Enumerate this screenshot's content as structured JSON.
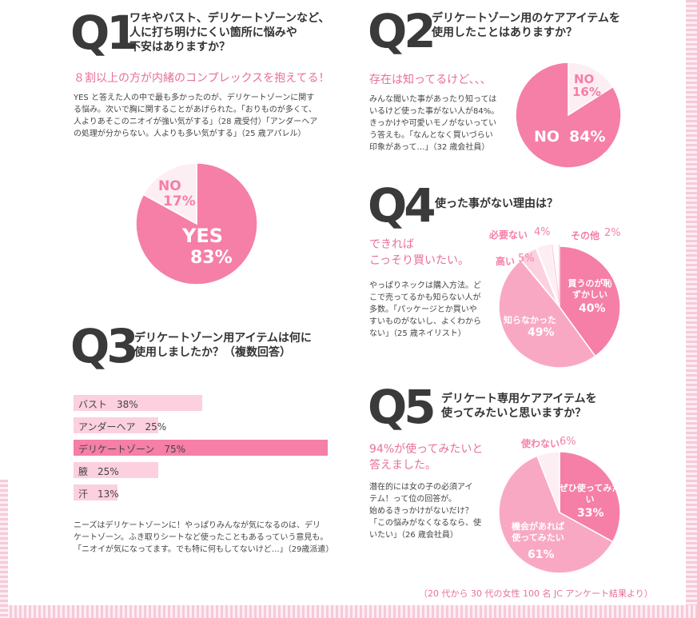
{
  "q1": {
    "num": "Q1",
    "title": "ワキやバスト、デリケートゾーンなど、\n人に打ち明けにくい箇所に悩みや\n不安はありますか？",
    "lead": "８割以上の方が内緒のコンプレックスを抱えてる！",
    "body": "YES と答えた人の中で最も多かったのが、デリケートゾーンに関す\nる悩み。次いで胸に関することがあげられた。「おりものが多くて、\n人よりあそこのニオイが強い気がする」（28 歳受付）「アンダーヘア\nの処理が分からない。人よりも多い気がする」（25 歳アパレル）"
  },
  "q2": {
    "num": "Q2",
    "title": "デリケートゾーン用のケアアイテムを\n使用したことはありますか？",
    "lead": "存在は知ってるけど、、、",
    "body": "みんな聞いた事があったり知っては\nいるけど使った事がない人が84%。\nきっかけや可愛いモノがないってい\nう答えも。「なんとなく買いづらい\n印象があって…」（32 歳会社員）"
  },
  "q3": {
    "num": "Q3",
    "title": "デリケートゾーン用アイテムは何に\n使用しましたか？（複数回答）",
    "body": "ニーズはデリケートゾーンに！やっぱりみんなが気になるのは、デリ\nケートゾーン。ふき取りシートなど使ったこともあるっていう意見も。\n「ニオイが気になってます。でも特に何もしてないけど…」（29歳派遣）"
  },
  "q4": {
    "num": "Q4",
    "title": "使った事がない理由は？",
    "lead": "できれば\nこっそり買いたい。",
    "body": "やっぱりネックは購入方法。ど\nこで売ってるかも知らない人が\n多数。「パッケージとか買いや\nすいものがないし、よくわから\nない」（25 歳ネイリスト）"
  },
  "q5": {
    "num": "Q5",
    "title": "デリケート専用ケアアイテムを\n使ってみたいと思いますか？",
    "lead": "94%が使ってみたいと\n答えました。",
    "body": "潜在的には女の子の必須アイ\nテム！って位の回答が。\n始めるきっかけがないだけ？\n「この悩みがなくなるなら、使\nいたい」（26 歳会社員）"
  },
  "footer": "（20 代から 30 代の女性 100 名 JC アンケート結果より）",
  "colors": {
    "pink_dark": "#f57fa6",
    "pink_mid": "#f9a8c3",
    "pink_light": "#fcd0de",
    "pale": "#fdeef3",
    "accent_text": "#e86f98"
  },
  "chart_data": [
    {
      "type": "pie",
      "id": "q1",
      "slices": [
        {
          "label": "YES",
          "value": 83,
          "text": "83%"
        },
        {
          "label": "NO",
          "value": 17,
          "text": "17%"
        }
      ]
    },
    {
      "type": "pie",
      "id": "q2",
      "slices": [
        {
          "label": "NO",
          "value": 84,
          "text": "84%"
        },
        {
          "label": "NO",
          "value": 16,
          "text": "16%"
        }
      ]
    },
    {
      "type": "bar",
      "id": "q3",
      "orientation": "horizontal",
      "categories": [
        "バスト",
        "アンダーヘア",
        "デリケートゾーン",
        "腋",
        "汗"
      ],
      "values": [
        38,
        25,
        75,
        25,
        13
      ],
      "value_labels": [
        "38%",
        "25%",
        "75%",
        "25%",
        "13%"
      ],
      "xlim": [
        0,
        100
      ]
    },
    {
      "type": "pie",
      "id": "q4",
      "slices": [
        {
          "label": "買うのが恥ずかしい",
          "value": 40,
          "text": "40%"
        },
        {
          "label": "知らなかった",
          "value": 49,
          "text": "49%"
        },
        {
          "label": "高い",
          "value": 5,
          "text": "5%"
        },
        {
          "label": "必要ない",
          "value": 4,
          "text": "4%"
        },
        {
          "label": "その他",
          "value": 2,
          "text": "2%"
        }
      ]
    },
    {
      "type": "pie",
      "id": "q5",
      "slices": [
        {
          "label": "ぜひ使ってみたい",
          "value": 33,
          "text": "33%"
        },
        {
          "label": "機会があれば使ってみたい",
          "value": 61,
          "text": "61%"
        },
        {
          "label": "使わない",
          "value": 6,
          "text": "6%"
        }
      ]
    }
  ]
}
